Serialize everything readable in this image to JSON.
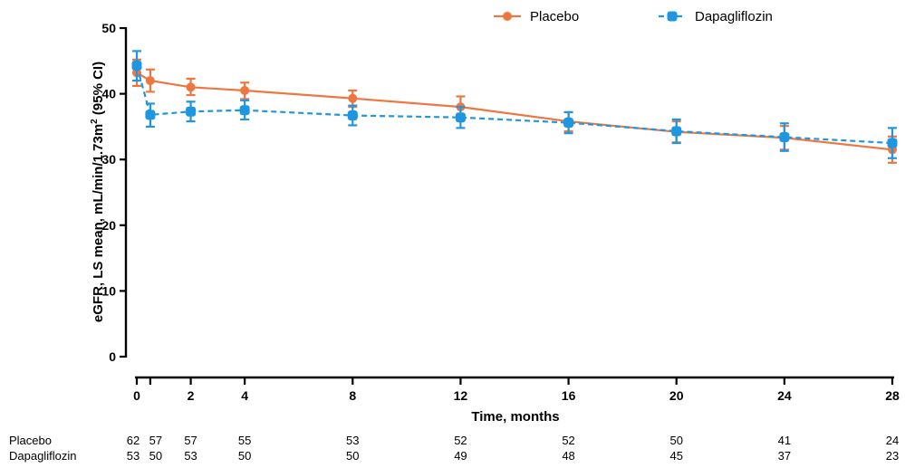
{
  "chart_data": {
    "type": "line",
    "xlabel": "Time, months",
    "ylabel_main": "eGFR, LS mean, mL/min/1.73m",
    "ylabel_sup": "2",
    "ylabel_tail": " (95% CI)",
    "xlim": [
      0,
      28
    ],
    "ylim": [
      0,
      50
    ],
    "x_ticks": [
      0,
      2,
      4,
      8,
      12,
      16,
      20,
      24,
      28
    ],
    "y_ticks": [
      0,
      10,
      20,
      30,
      40,
      50
    ],
    "legend_position": "top-right",
    "series": [
      {
        "name": "Placebo",
        "color": "#ee7641",
        "line_style": "solid",
        "marker": "circle",
        "x": [
          0,
          0.5,
          2,
          4,
          8,
          12,
          16,
          20,
          24,
          28
        ],
        "y": [
          43.2,
          42.0,
          41.0,
          40.5,
          39.3,
          38.0,
          35.8,
          34.2,
          33.3,
          31.5
        ],
        "ci_low": [
          41.2,
          40.3,
          39.8,
          39.2,
          38.0,
          36.5,
          34.3,
          32.6,
          31.5,
          29.5
        ],
        "ci_high": [
          45.2,
          43.7,
          42.3,
          41.7,
          40.5,
          39.6,
          37.2,
          35.8,
          35.1,
          33.5
        ]
      },
      {
        "name": "Dapagliflozin",
        "color": "#1f97e0",
        "line_style": "dashed",
        "marker": "square",
        "x": [
          0,
          0.5,
          2,
          4,
          8,
          12,
          16,
          20,
          24,
          28
        ],
        "y": [
          44.3,
          36.8,
          37.3,
          37.5,
          36.7,
          36.4,
          35.6,
          34.3,
          33.4,
          32.5
        ],
        "ci_low": [
          42.0,
          35.0,
          35.8,
          36.1,
          35.2,
          34.8,
          34.0,
          32.5,
          31.3,
          30.2
        ],
        "ci_high": [
          46.5,
          38.5,
          38.8,
          39.0,
          38.2,
          38.0,
          37.2,
          36.1,
          35.5,
          34.8
        ]
      }
    ],
    "at_risk": {
      "x": [
        0,
        0.5,
        2,
        4,
        8,
        12,
        16,
        20,
        24,
        28
      ],
      "rows": [
        {
          "label": "Placebo",
          "values": [
            "62",
            "57",
            "57",
            "55",
            "53",
            "52",
            "52",
            "50",
            "41",
            "24"
          ]
        },
        {
          "label": "Dapagliflozin",
          "values": [
            "53",
            "50",
            "53",
            "50",
            "50",
            "49",
            "48",
            "45",
            "37",
            "23"
          ]
        }
      ]
    }
  }
}
